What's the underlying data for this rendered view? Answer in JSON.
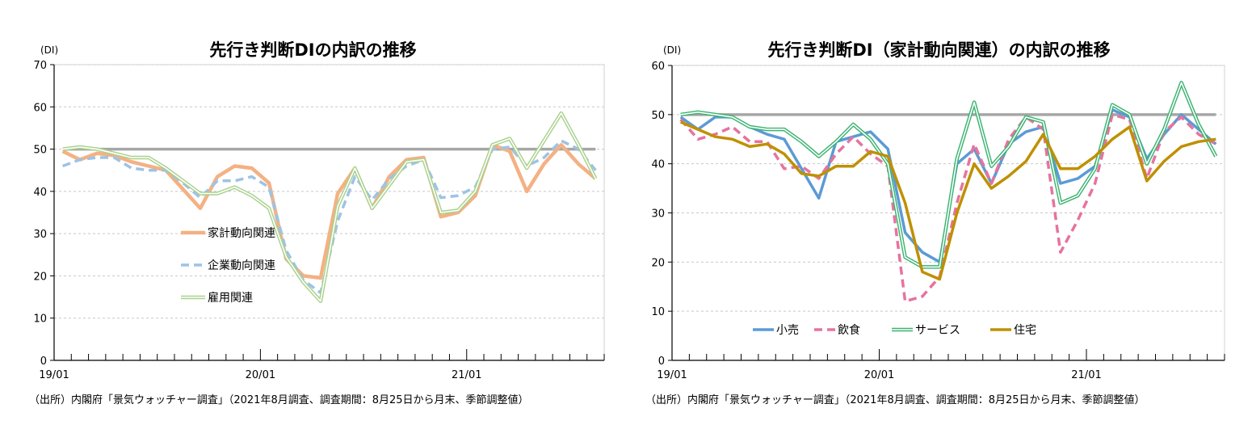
{
  "chart_data": [
    {
      "type": "line",
      "title": "先行き判断DIの内訳の推移",
      "unit_label": "(DI)",
      "source_note": "（出所）内閣府「景気ウォッチャー調査」（2021年8月調査、調査期間：8月25日から月末、季節調整値）",
      "ylim": [
        0,
        70
      ],
      "yticks": [
        "0",
        "10",
        "20",
        "30",
        "40",
        "50",
        "60",
        "70"
      ],
      "x_tick_labels": [
        "19/01",
        "20/01",
        "21/01"
      ],
      "x": [
        "19/01",
        "19/02",
        "19/03",
        "19/04",
        "19/05",
        "19/06",
        "19/07",
        "19/08",
        "19/09",
        "19/10",
        "19/11",
        "19/12",
        "20/01",
        "20/02",
        "20/03",
        "20/04",
        "20/05",
        "20/06",
        "20/07",
        "20/08",
        "20/09",
        "20/10",
        "20/11",
        "20/12",
        "21/01",
        "21/02",
        "21/03",
        "21/04",
        "21/05",
        "21/06",
        "21/07",
        "21/08"
      ],
      "grid": true,
      "reference_line": 50,
      "legend_position": "middle-left",
      "series": [
        {
          "name": "家計動向関連",
          "color": "#f4b183",
          "style": "solid-thick",
          "values": [
            49.5,
            47.5,
            49,
            48.5,
            47,
            46,
            45,
            40.5,
            36,
            43.5,
            46,
            45.5,
            42,
            24,
            20,
            19.5,
            39.5,
            45.5,
            36,
            43.5,
            47.5,
            48,
            34,
            35,
            39,
            51,
            49.5,
            40,
            46.5,
            51,
            46.5,
            43
          ]
        },
        {
          "name": "企業動向関連",
          "color": "#9dc3e6",
          "style": "dashed",
          "values": [
            46,
            47.5,
            48,
            48,
            45.5,
            45,
            45,
            42,
            38.5,
            42.5,
            42.5,
            43.5,
            41,
            26,
            19,
            16,
            33,
            43.5,
            38,
            43,
            46,
            47.5,
            38.5,
            39,
            41,
            50,
            50.5,
            46,
            48,
            52,
            50,
            45
          ]
        },
        {
          "name": "雇用関連",
          "color": "#a9d18e",
          "style": "double",
          "values": [
            50,
            50.5,
            50,
            49,
            48,
            48,
            45.5,
            42.5,
            39.5,
            39.5,
            41,
            39,
            36,
            24.5,
            18.5,
            14,
            36.5,
            45.5,
            36,
            41.5,
            47,
            47.5,
            35,
            35.5,
            40,
            51,
            52.5,
            45.5,
            52,
            58.5,
            51,
            43
          ]
        }
      ]
    },
    {
      "type": "line",
      "title": "先行き判断DI（家計動向関連）の内訳の推移",
      "unit_label": "(DI)",
      "source_note": "（出所）内閣府「景気ウォッチャー調査」（2021年8月調査、調査期間：8月25日から月末、季節調整値）",
      "ylim": [
        0,
        60
      ],
      "yticks": [
        "0",
        "10",
        "20",
        "30",
        "40",
        "50",
        "60"
      ],
      "x_tick_labels": [
        "19/01",
        "20/01",
        "21/01"
      ],
      "x": [
        "19/01",
        "19/02",
        "19/03",
        "19/04",
        "19/05",
        "19/06",
        "19/07",
        "19/08",
        "19/09",
        "19/10",
        "19/11",
        "19/12",
        "20/01",
        "20/02",
        "20/03",
        "20/04",
        "20/05",
        "20/06",
        "20/07",
        "20/08",
        "20/09",
        "20/10",
        "20/11",
        "20/12",
        "21/01",
        "21/02",
        "21/03",
        "21/04",
        "21/05",
        "21/06",
        "21/07",
        "21/08"
      ],
      "grid": true,
      "reference_line": 50,
      "legend_position": "bottom-left",
      "series": [
        {
          "name": "小売",
          "color": "#5b9bd5",
          "style": "solid",
          "values": [
            49.5,
            47,
            49.5,
            49.5,
            47.5,
            46,
            45,
            39,
            33,
            44.5,
            45.5,
            46.5,
            43,
            26,
            22,
            20,
            40,
            43,
            36,
            44,
            46.5,
            47.5,
            36,
            37,
            39.5,
            51,
            49.5,
            41,
            46,
            50,
            47,
            44
          ]
        },
        {
          "name": "飲食",
          "color": "#e6739f",
          "style": "dashed",
          "values": [
            49,
            45,
            46,
            47.5,
            44.5,
            44.5,
            39,
            39.5,
            37,
            42,
            45.5,
            42,
            39.5,
            12,
            13,
            17,
            32,
            44,
            36,
            45,
            49.5,
            47,
            22,
            28.5,
            36,
            50,
            49,
            37,
            46.5,
            49.5,
            46,
            44
          ]
        },
        {
          "name": "サービス",
          "color": "#3cb371",
          "style": "double",
          "values": [
            50,
            50.5,
            50,
            49.5,
            47.5,
            47,
            47,
            44.5,
            41.5,
            44.5,
            48,
            45,
            40,
            21,
            19,
            19,
            41,
            52.5,
            39.5,
            43.5,
            49.5,
            48.5,
            32,
            33.5,
            39,
            52,
            50,
            40,
            47,
            56.5,
            48,
            41.5
          ]
        },
        {
          "name": "住宅",
          "color": "#bf9000",
          "style": "solid",
          "values": [
            48.5,
            47,
            45.5,
            45,
            43.5,
            44,
            42,
            38,
            37.5,
            39.5,
            39.5,
            42.5,
            41.5,
            32,
            18,
            16.5,
            30,
            40,
            35,
            37.5,
            40.5,
            46,
            39,
            39,
            41.5,
            45,
            47.5,
            36.5,
            40.5,
            43.5,
            44.5,
            45
          ]
        }
      ]
    }
  ]
}
